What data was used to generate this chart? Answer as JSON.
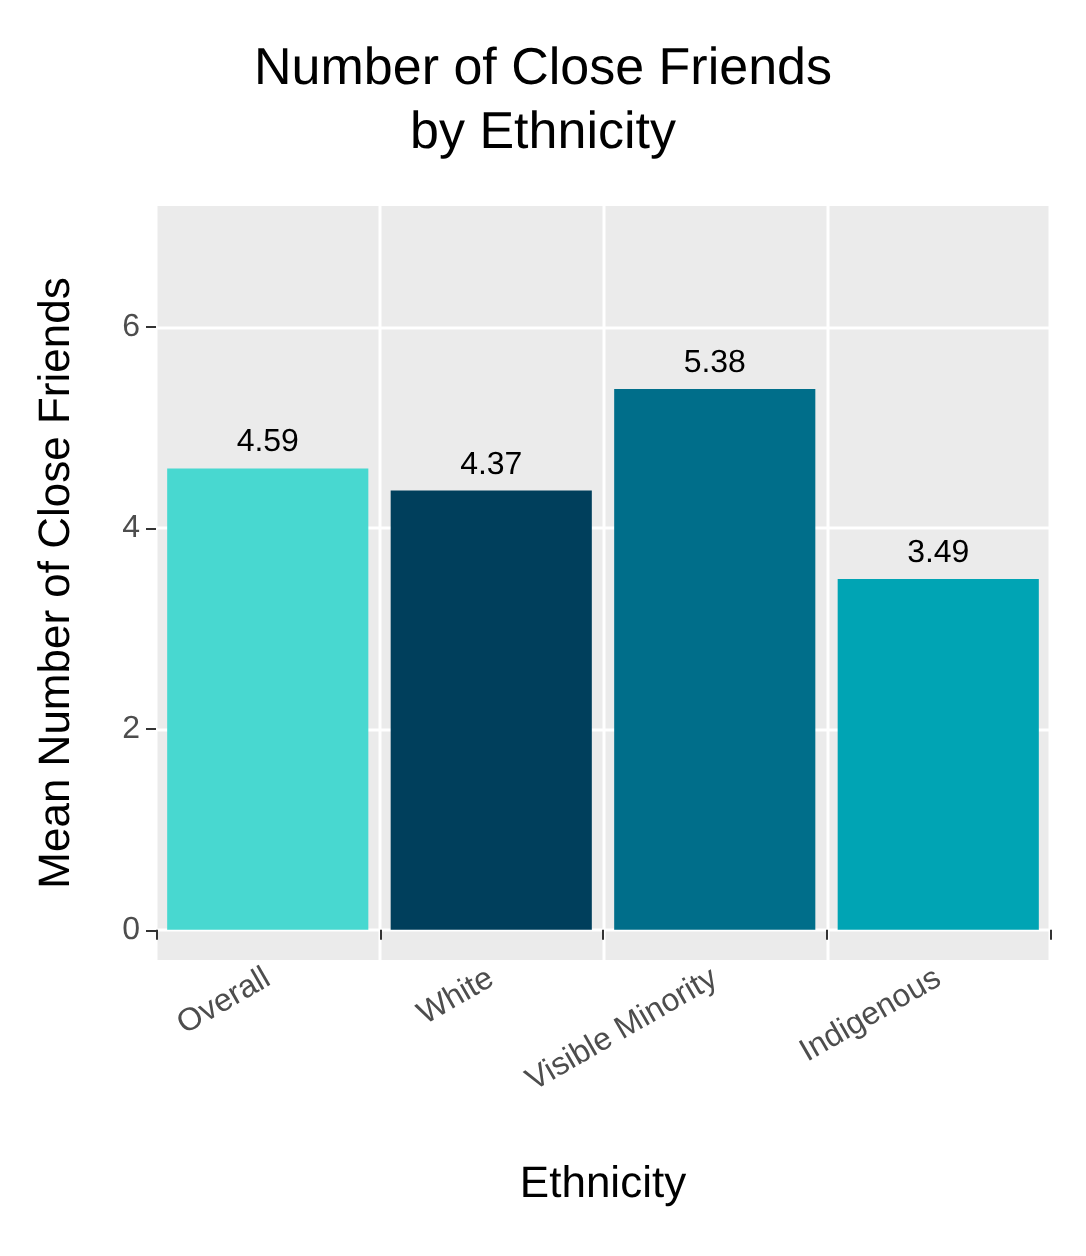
{
  "chart_data": {
    "type": "bar",
    "title": "Number of Close Friends\nby Ethnicity",
    "xlabel": "Ethnicity",
    "ylabel": "Mean Number of Close Friends",
    "categories": [
      "Overall",
      "White",
      "Visible Minority",
      "Indigenous"
    ],
    "values": [
      4.59,
      4.37,
      5.38,
      3.49
    ],
    "colors": [
      "#48d8d0",
      "#003f5c",
      "#006e8a",
      "#00a4b4"
    ],
    "ylim": [
      -0.3,
      7.2
    ],
    "yticks": [
      0,
      2,
      4,
      6
    ],
    "grid": true,
    "data_labels": true
  }
}
